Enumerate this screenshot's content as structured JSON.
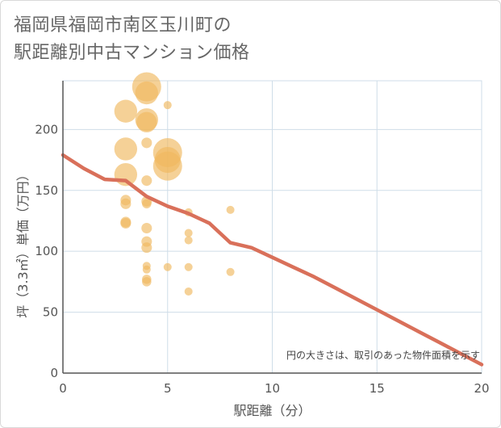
{
  "title": "福岡県福岡市南区玉川町の\n駅距離別中古マンション価格",
  "colors": {
    "bubble": "#f0b860",
    "line": "#d9705a",
    "grid": "#cfdde8",
    "axis": "#555555"
  },
  "chart_data": {
    "type": "scatter",
    "title": "福岡県福岡市南区玉川町の駅距離別中古マンション価格",
    "xlabel": "駅距離（分）",
    "ylabel": "坪（3.3㎡）単価（万円）",
    "xlim": [
      0,
      20
    ],
    "ylim": [
      0,
      240
    ],
    "xticks": [
      0,
      5,
      10,
      15,
      20
    ],
    "yticks": [
      0,
      50,
      100,
      150,
      200
    ],
    "note": "円の大きさは、取引のあった物件面積を示す",
    "points": [
      {
        "x": 3,
        "y": 215,
        "size": 3
      },
      {
        "x": 3,
        "y": 184,
        "size": 3
      },
      {
        "x": 3,
        "y": 163,
        "size": 3
      },
      {
        "x": 3,
        "y": 142,
        "size": 1
      },
      {
        "x": 3,
        "y": 139,
        "size": 1
      },
      {
        "x": 3,
        "y": 124,
        "size": 1
      },
      {
        "x": 3,
        "y": 123,
        "size": 1
      },
      {
        "x": 4,
        "y": 235,
        "size": 4
      },
      {
        "x": 4,
        "y": 230,
        "size": 3
      },
      {
        "x": 4,
        "y": 208,
        "size": 3
      },
      {
        "x": 4,
        "y": 206,
        "size": 2.6
      },
      {
        "x": 4,
        "y": 189,
        "size": 1
      },
      {
        "x": 4,
        "y": 158,
        "size": 1
      },
      {
        "x": 4,
        "y": 141,
        "size": 1
      },
      {
        "x": 4,
        "y": 139,
        "size": 0.8
      },
      {
        "x": 4,
        "y": 119,
        "size": 1
      },
      {
        "x": 4,
        "y": 108,
        "size": 1
      },
      {
        "x": 4,
        "y": 103,
        "size": 1
      },
      {
        "x": 4,
        "y": 88,
        "size": 0.6
      },
      {
        "x": 4,
        "y": 85,
        "size": 0.6
      },
      {
        "x": 4,
        "y": 77,
        "size": 0.8
      },
      {
        "x": 4,
        "y": 75,
        "size": 0.8
      },
      {
        "x": 5,
        "y": 220,
        "size": 0.6
      },
      {
        "x": 5,
        "y": 181,
        "size": 4
      },
      {
        "x": 5,
        "y": 175,
        "size": 3.5
      },
      {
        "x": 5,
        "y": 170,
        "size": 4
      },
      {
        "x": 5,
        "y": 87,
        "size": 0.6
      },
      {
        "x": 6,
        "y": 132,
        "size": 0.6
      },
      {
        "x": 6,
        "y": 115,
        "size": 0.6
      },
      {
        "x": 6,
        "y": 109,
        "size": 0.6
      },
      {
        "x": 6,
        "y": 87,
        "size": 0.6
      },
      {
        "x": 6,
        "y": 67,
        "size": 0.6
      },
      {
        "x": 8,
        "y": 134,
        "size": 0.6
      },
      {
        "x": 8,
        "y": 83,
        "size": 0.6
      }
    ],
    "series": [
      {
        "name": "trend",
        "x": [
          0,
          1,
          2,
          3,
          4,
          5,
          6,
          7,
          8,
          9,
          10,
          11,
          12,
          13,
          14,
          15,
          16,
          17,
          18,
          19,
          20
        ],
        "y": [
          179,
          168,
          159,
          158,
          145,
          137,
          131,
          123,
          107,
          103,
          95,
          87,
          79,
          70,
          61,
          52,
          43,
          34,
          25,
          16,
          7
        ]
      }
    ]
  }
}
